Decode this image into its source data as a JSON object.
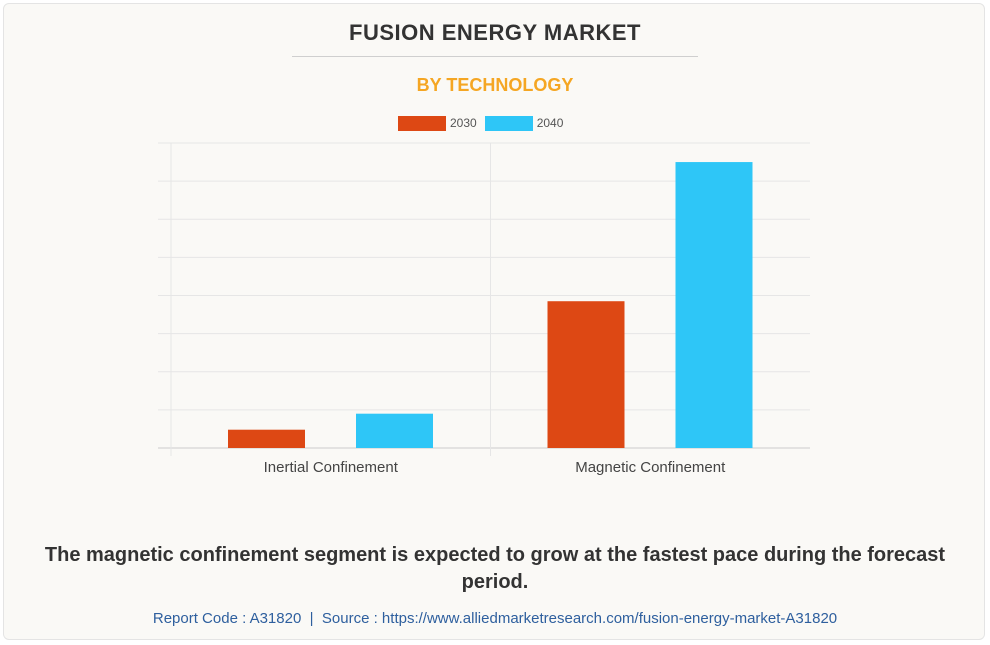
{
  "title": "FUSION ENERGY MARKET",
  "subtitle": "BY TECHNOLOGY",
  "headline": "The magnetic confinement segment is expected to grow at the fastest pace during the forecast period.",
  "footer": {
    "report_code_label": "Report Code : A31820",
    "separator": "|",
    "source_label": "Source : https://www.alliedmarketresearch.com/fusion-energy-market-A31820"
  },
  "colors": {
    "2030": "#dd4814",
    "2040": "#2ec6f7",
    "subtitle": "#f5a623"
  },
  "chart_data": {
    "type": "bar",
    "title": "FUSION ENERGY MARKET",
    "subtitle": "BY TECHNOLOGY",
    "categories": [
      "Inertial Confinement",
      "Magnetic Confinement"
    ],
    "series": [
      {
        "name": "2030",
        "values": [
          4.8,
          38.5
        ]
      },
      {
        "name": "2040",
        "values": [
          9.0,
          75.0
        ]
      }
    ],
    "ylim": [
      0,
      80
    ],
    "grid": true,
    "legend": "top-center",
    "xlabel": "",
    "ylabel": ""
  }
}
